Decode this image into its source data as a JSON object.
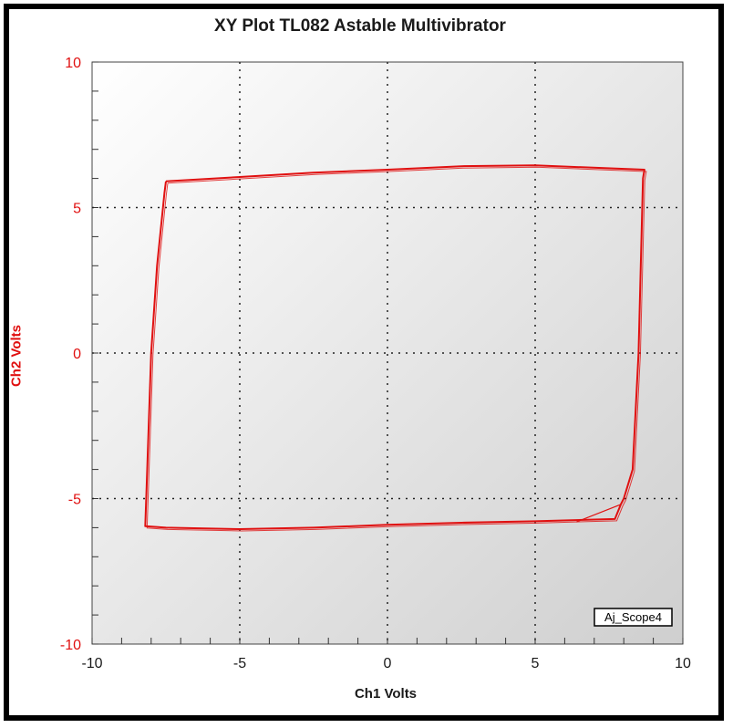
{
  "chart_data": {
    "type": "line",
    "title": "XY Plot TL082 Astable Multivibrator",
    "xlabel": "Ch1 Volts",
    "ylabel": "Ch2 Volts",
    "xlim": [
      -10,
      10
    ],
    "ylim": [
      -10,
      10
    ],
    "x_ticks": [
      "-10",
      "-5",
      "0",
      "5",
      "10"
    ],
    "y_ticks": [
      "10",
      "5",
      "0",
      "-5",
      "-10"
    ],
    "grid": true,
    "legend_label": "Aj_Scope4",
    "legend_position": "bottom-right",
    "series": [
      {
        "color": "#e01010",
        "x": [
          -7.5,
          -5,
          -2.5,
          0,
          2.5,
          5,
          8.7,
          8.65,
          8.5,
          8.3,
          8.0,
          7.9,
          7.7,
          5,
          2.5,
          0,
          -2.5,
          -5,
          -7.5,
          -8.2,
          -8.15,
          -8.0,
          -7.8,
          -7.55,
          -7.5
        ],
        "y": [
          5.9,
          6.05,
          6.2,
          6.3,
          6.42,
          6.45,
          6.3,
          6.0,
          0,
          -4.0,
          -5.0,
          -5.2,
          -5.7,
          -5.78,
          -5.83,
          -5.9,
          -6.0,
          -6.05,
          -6.0,
          -5.95,
          -4.5,
          0,
          3.0,
          5.5,
          5.9
        ]
      }
    ],
    "colors": {
      "trace": "#e01010",
      "tick_label": "#e01010",
      "grid": "#222222"
    }
  }
}
